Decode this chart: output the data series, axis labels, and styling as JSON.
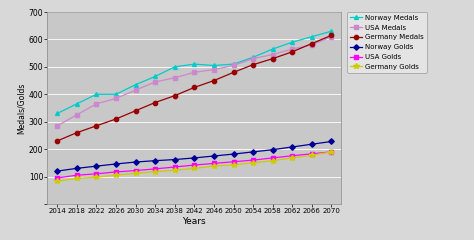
{
  "years": [
    2014,
    2018,
    2022,
    2026,
    2030,
    2034,
    2038,
    2042,
    2046,
    2050,
    2054,
    2058,
    2062,
    2066,
    2070
  ],
  "norway_medals": [
    330,
    365,
    400,
    400,
    435,
    465,
    500,
    510,
    505,
    510,
    535,
    565,
    590,
    610,
    630
  ],
  "usa_medals": [
    285,
    325,
    365,
    385,
    415,
    445,
    460,
    480,
    490,
    505,
    530,
    545,
    565,
    580,
    610
  ],
  "germany_medals": [
    230,
    260,
    285,
    310,
    340,
    370,
    395,
    425,
    450,
    480,
    508,
    530,
    555,
    585,
    615
  ],
  "norway_golds": [
    120,
    130,
    138,
    146,
    153,
    158,
    162,
    168,
    175,
    182,
    190,
    198,
    208,
    218,
    228
  ],
  "usa_golds": [
    95,
    105,
    110,
    117,
    122,
    128,
    135,
    142,
    148,
    154,
    160,
    168,
    176,
    183,
    190
  ],
  "germany_golds": [
    83,
    93,
    98,
    105,
    112,
    118,
    123,
    130,
    138,
    143,
    150,
    158,
    168,
    178,
    190
  ],
  "colors": {
    "norway_medals": "#00CCCC",
    "usa_medals": "#CC88CC",
    "germany_medals": "#990000",
    "norway_golds": "#000099",
    "usa_golds": "#FF00FF",
    "germany_golds": "#CCCC00"
  },
  "ylim": [
    0,
    700
  ],
  "yticks": [
    0,
    100,
    200,
    300,
    400,
    500,
    600,
    700
  ],
  "xlabel": "Years",
  "ylabel": "Medals/Golds",
  "bg_color": "#C8C8C8",
  "fig_bg": "#D8D8D8",
  "legend_labels": [
    "Norway Medals",
    "USA Medals",
    "Germany Medals",
    "Norway Golds",
    "USA Golds",
    "Germany Golds"
  ]
}
